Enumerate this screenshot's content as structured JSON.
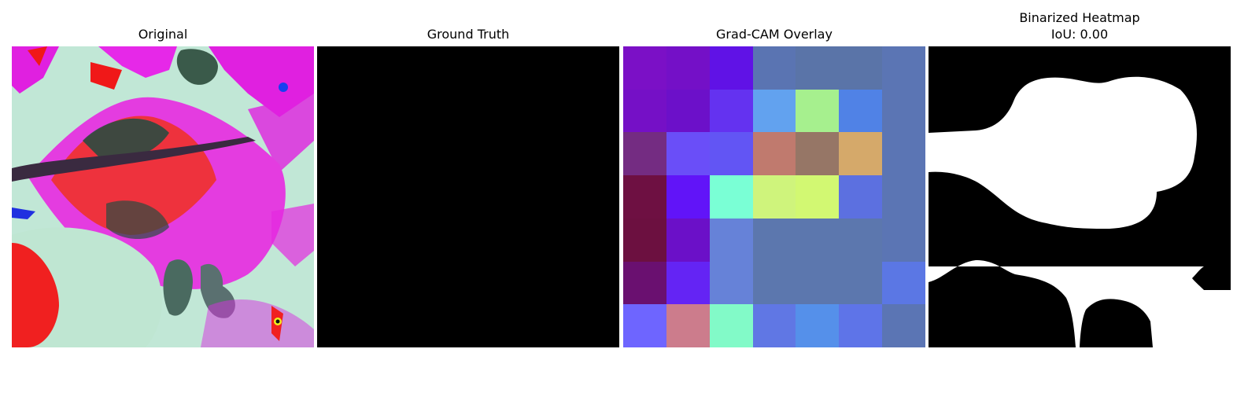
{
  "figure": {
    "panels": [
      {
        "title": "Original"
      },
      {
        "title": "Ground Truth"
      },
      {
        "title": "Grad-CAM Overlay"
      },
      {
        "title_line1": "Binarized Heatmap",
        "title_line2": "IoU: 0.00"
      }
    ]
  },
  "ground_truth": {
    "fill_color": "#000000"
  },
  "gradcam_overlay": {
    "rows": 7,
    "cols": 7,
    "cell_colors": [
      [
        "#7b10c6",
        "#7410c7",
        "#6012e6",
        "#5a74b2",
        "#5a74a8",
        "#5a74a8",
        "#5b75b4"
      ],
      [
        "#7510c6",
        "#6c10c9",
        "#6432f0",
        "#62a2ef",
        "#a6f08e",
        "#5082e6",
        "#5b75b4"
      ],
      [
        "#742c82",
        "#6a4ef8",
        "#6255f4",
        "#c07a6e",
        "#967666",
        "#d5a96a",
        "#5b75b4"
      ],
      [
        "#6e1042",
        "#6114f8",
        "#7affd5",
        "#cff47c",
        "#d2f872",
        "#5c70e0",
        "#5b75b4"
      ],
      [
        "#6c1040",
        "#6b10c8",
        "#6682d8",
        "#5c77ae",
        "#5c77ae",
        "#5c77ae",
        "#5b75b4"
      ],
      [
        "#6a1070",
        "#6424f4",
        "#6682d8",
        "#5c77ae",
        "#5c77ae",
        "#5c77ae",
        "#5b77e4"
      ],
      [
        "#6e65ff",
        "#cc7c8c",
        "#82fac8",
        "#6077e4",
        "#5590ea",
        "#5e74e8",
        "#5b75b4"
      ]
    ]
  },
  "binarized_heatmap": {
    "background": "#000000",
    "foreground": "#ffffff",
    "iou": "0.00"
  }
}
